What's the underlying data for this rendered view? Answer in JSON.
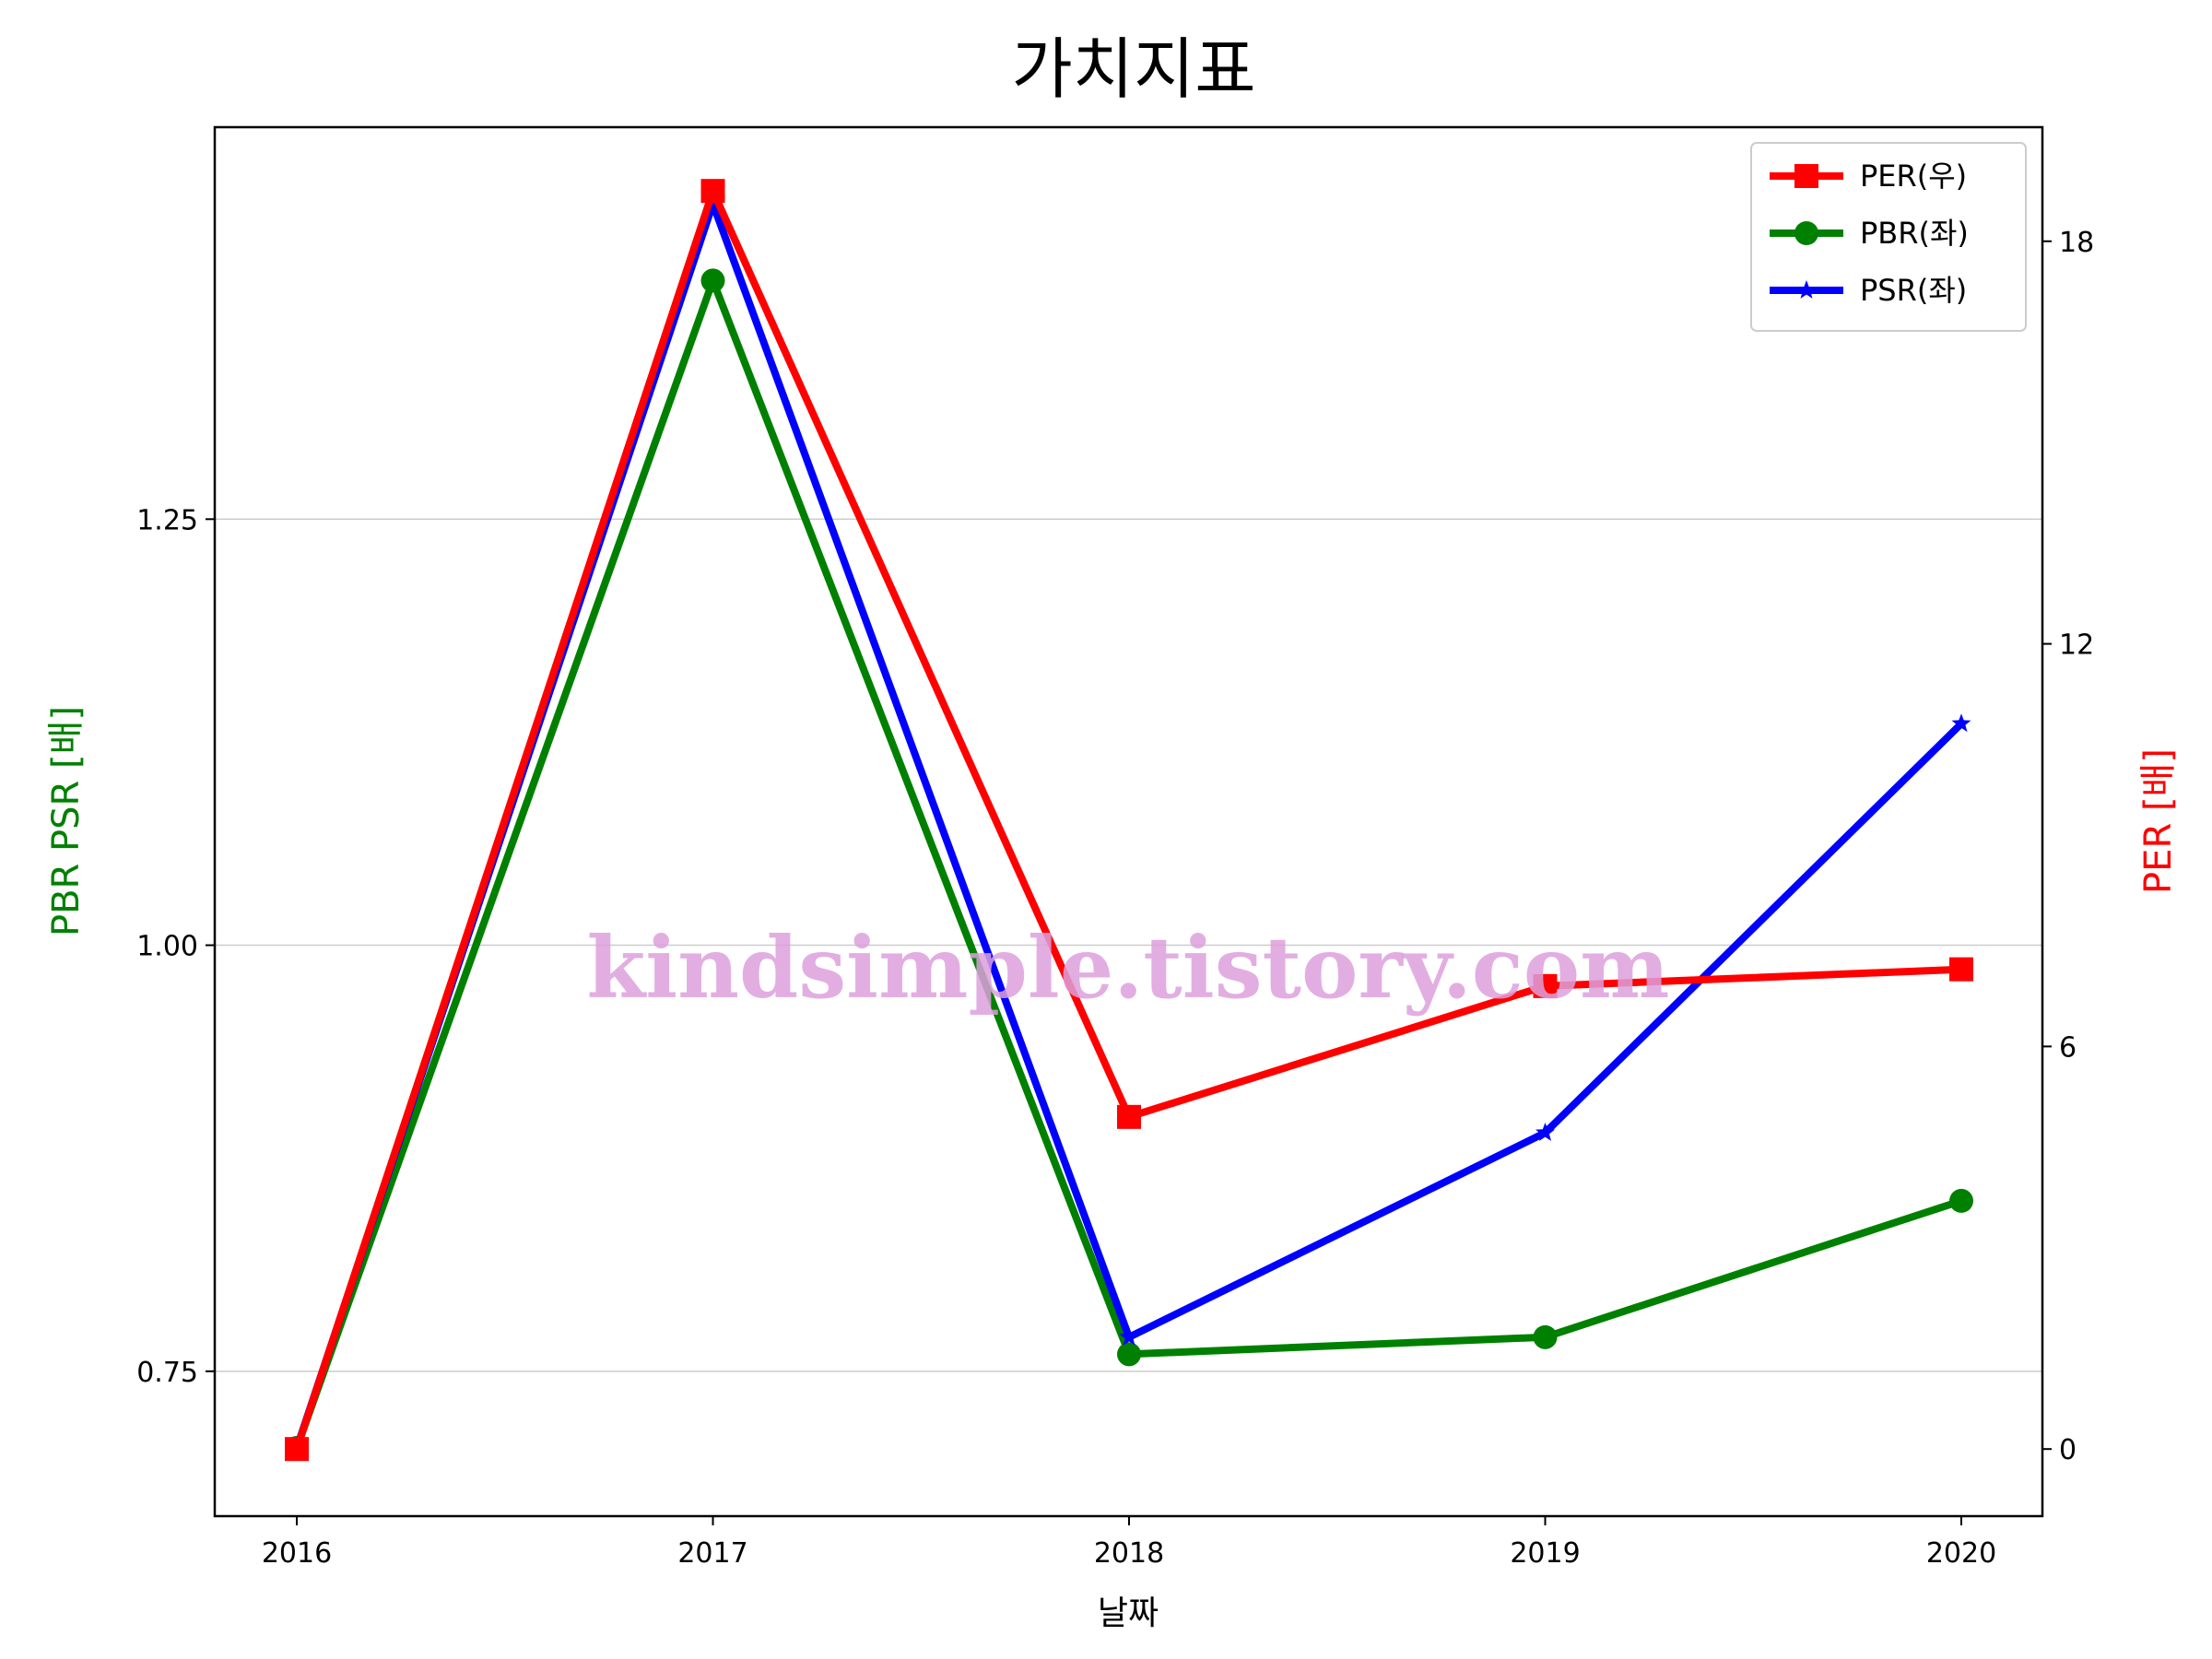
{
  "chart_data": {
    "type": "line",
    "title": "가치지표",
    "xlabel": "날짜",
    "ylabel_left": "PBR PSR [배]",
    "ylabel_right": "PER [배]",
    "ylabel_left_color": "#008000",
    "ylabel_right_color": "#ff0000",
    "categories": [
      "2016",
      "2017",
      "2018",
      "2019",
      "2020"
    ],
    "left_axis": {
      "ylim": [
        0.665,
        1.48
      ],
      "ticks": [
        0.75,
        1.0,
        1.25
      ],
      "tick_labels": [
        "0.75",
        "1.00",
        "1.25"
      ]
    },
    "right_axis": {
      "ylim": [
        -1.0,
        19.7
      ],
      "ticks": [
        0,
        6,
        12,
        18
      ],
      "tick_labels": [
        "0",
        "6",
        "12",
        "18"
      ]
    },
    "grid": "horizontal",
    "legend_position": "top-right",
    "watermark": "kindsimple.tistory.com",
    "series": [
      {
        "name": "PER(우)",
        "axis": "right",
        "color": "#ff0000",
        "marker": "square",
        "values": [
          0.0,
          18.75,
          4.95,
          6.9,
          7.15
        ]
      },
      {
        "name": "PBR(좌)",
        "axis": "left",
        "color": "#008000",
        "marker": "circle",
        "values": [
          0.705,
          1.39,
          0.76,
          0.77,
          0.85
        ]
      },
      {
        "name": "PSR(좌)",
        "axis": "left",
        "color": "#0000ff",
        "marker": "star",
        "values": [
          0.705,
          1.435,
          0.77,
          0.89,
          1.13
        ]
      }
    ]
  }
}
